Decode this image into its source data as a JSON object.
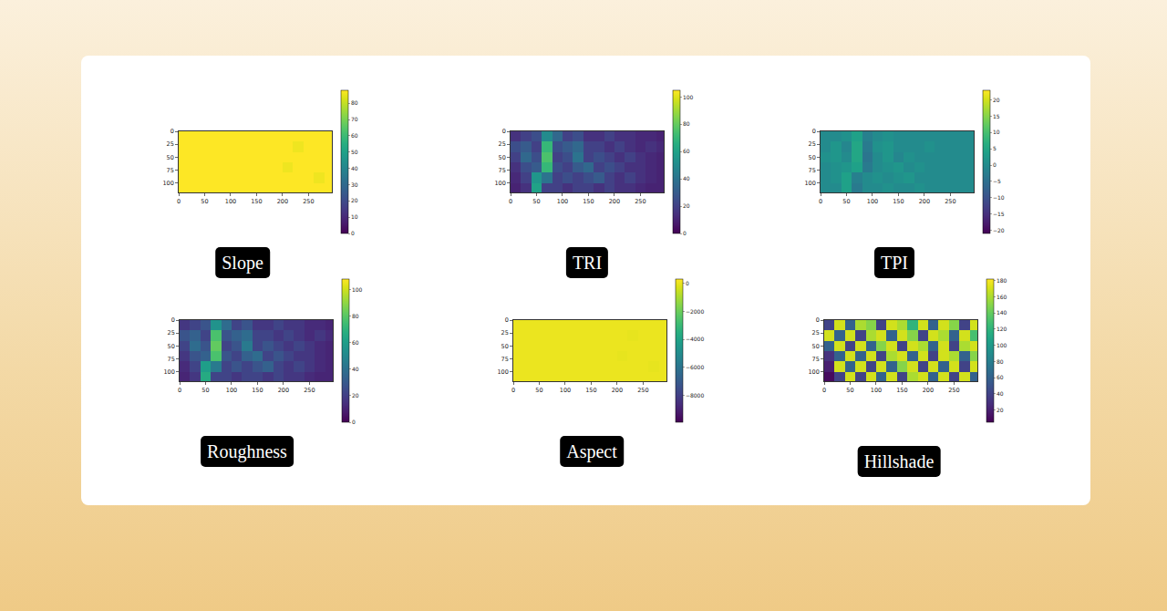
{
  "chart_data": [
    {
      "type": "heatmap",
      "title": "Slope",
      "color": "Viridis",
      "x": [
        10,
        30,
        50,
        70,
        90,
        110,
        130,
        150,
        170,
        190,
        210,
        230,
        250,
        270,
        290
      ],
      "y": [
        10,
        30,
        50,
        70,
        90,
        110
      ],
      "xlim": [
        0,
        295
      ],
      "ylim": [
        118,
        0
      ],
      "xticks": [
        0,
        50,
        100,
        150,
        200,
        250
      ],
      "yticks": [
        0,
        25,
        50,
        75,
        100
      ],
      "values": [
        [
          88,
          88,
          88,
          88,
          88,
          88,
          88,
          88,
          88,
          88,
          88,
          88,
          88,
          88,
          88
        ],
        [
          88,
          88,
          88,
          88,
          88,
          88,
          88,
          88,
          88,
          88,
          88,
          86,
          88,
          88,
          88
        ],
        [
          88,
          88,
          88,
          88,
          88,
          88,
          88,
          88,
          88,
          88,
          88,
          88,
          88,
          88,
          88
        ],
        [
          88,
          88,
          88,
          88,
          88,
          88,
          88,
          88,
          88,
          88,
          86,
          88,
          88,
          88,
          88
        ],
        [
          88,
          88,
          88,
          88,
          88,
          88,
          88,
          88,
          88,
          88,
          88,
          88,
          88,
          86,
          88
        ],
        [
          88,
          88,
          88,
          88,
          88,
          88,
          88,
          88,
          88,
          88,
          88,
          88,
          88,
          88,
          88
        ]
      ],
      "colorbar_range": [
        0,
        88
      ],
      "colorbar_ticks": [
        0,
        10,
        20,
        30,
        40,
        50,
        60,
        70,
        80
      ]
    },
    {
      "type": "heatmap",
      "title": "TRI",
      "color": "Viridis",
      "x": [
        10,
        30,
        50,
        70,
        90,
        110,
        130,
        150,
        170,
        190,
        210,
        230,
        250,
        270,
        290
      ],
      "y": [
        10,
        30,
        50,
        70,
        90,
        110
      ],
      "xlim": [
        0,
        295
      ],
      "ylim": [
        118,
        0
      ],
      "xticks": [
        0,
        50,
        100,
        150,
        200,
        250
      ],
      "yticks": [
        0,
        25,
        50,
        75,
        100
      ],
      "values": [
        [
          15,
          20,
          25,
          50,
          35,
          20,
          25,
          15,
          15,
          20,
          15,
          15,
          12,
          12,
          10
        ],
        [
          25,
          30,
          20,
          70,
          25,
          30,
          35,
          20,
          20,
          15,
          20,
          15,
          12,
          15,
          12
        ],
        [
          20,
          35,
          25,
          75,
          20,
          25,
          40,
          20,
          25,
          20,
          15,
          20,
          15,
          12,
          10
        ],
        [
          15,
          25,
          30,
          70,
          25,
          20,
          30,
          35,
          20,
          25,
          20,
          15,
          15,
          12,
          10
        ],
        [
          12,
          20,
          55,
          40,
          20,
          25,
          20,
          25,
          30,
          20,
          15,
          20,
          15,
          12,
          10
        ],
        [
          10,
          15,
          60,
          20,
          20,
          15,
          20,
          20,
          15,
          20,
          15,
          15,
          12,
          10,
          10
        ]
      ],
      "colorbar_range": [
        0,
        105
      ],
      "colorbar_ticks": [
        0,
        20,
        40,
        60,
        80,
        100
      ]
    },
    {
      "type": "heatmap",
      "title": "TPI",
      "color": "Viridis",
      "x": [
        10,
        30,
        50,
        70,
        90,
        110,
        130,
        150,
        170,
        190,
        210,
        230,
        250,
        270,
        290
      ],
      "y": [
        10,
        30,
        50,
        70,
        90,
        110
      ],
      "xlim": [
        0,
        295
      ],
      "ylim": [
        118,
        0
      ],
      "xticks": [
        0,
        50,
        100,
        150,
        200,
        250
      ],
      "yticks": [
        0,
        25,
        50,
        75,
        100
      ],
      "values": [
        [
          0,
          0,
          1,
          4,
          -2,
          0,
          1,
          0,
          0,
          0,
          0,
          0,
          0,
          0,
          0
        ],
        [
          0,
          2,
          -1,
          5,
          -3,
          1,
          2,
          0,
          0,
          0,
          1,
          0,
          0,
          0,
          0
        ],
        [
          1,
          2,
          0,
          5,
          -4,
          0,
          2,
          -1,
          1,
          0,
          0,
          0,
          0,
          0,
          0
        ],
        [
          0,
          1,
          2,
          4,
          -3,
          0,
          1,
          2,
          0,
          1,
          0,
          0,
          0,
          0,
          0
        ],
        [
          0,
          1,
          4,
          -2,
          0,
          1,
          0,
          1,
          2,
          0,
          0,
          0,
          0,
          0,
          0
        ],
        [
          0,
          0,
          4,
          -3,
          0,
          0,
          1,
          0,
          0,
          1,
          0,
          0,
          0,
          0,
          0
        ]
      ],
      "colorbar_range": [
        -21,
        23
      ],
      "colorbar_ticks": [
        {
          "value": -20,
          "label": "−20"
        },
        {
          "value": -15,
          "label": "−15"
        },
        {
          "value": -10,
          "label": "−10"
        },
        {
          "value": -5,
          "label": "−5"
        },
        0,
        5,
        10,
        15,
        20
      ]
    },
    {
      "type": "heatmap",
      "title": "Roughness",
      "color": "Viridis",
      "x": [
        10,
        30,
        50,
        70,
        90,
        110,
        130,
        150,
        170,
        190,
        210,
        230,
        250,
        270,
        290
      ],
      "y": [
        10,
        30,
        50,
        70,
        90,
        110
      ],
      "xlim": [
        0,
        295
      ],
      "ylim": [
        118,
        0
      ],
      "xticks": [
        0,
        50,
        100,
        150,
        200,
        250
      ],
      "yticks": [
        0,
        25,
        50,
        75,
        100
      ],
      "values": [
        [
          17,
          22,
          28,
          55,
          38,
          22,
          28,
          17,
          17,
          22,
          17,
          17,
          13,
          13,
          11
        ],
        [
          28,
          33,
          22,
          77,
          28,
          33,
          38,
          22,
          22,
          17,
          22,
          17,
          13,
          17,
          13
        ],
        [
          22,
          38,
          28,
          82,
          22,
          28,
          44,
          22,
          28,
          22,
          17,
          22,
          17,
          13,
          11
        ],
        [
          17,
          28,
          33,
          77,
          28,
          22,
          33,
          38,
          22,
          28,
          22,
          17,
          17,
          13,
          11
        ],
        [
          13,
          22,
          60,
          44,
          22,
          28,
          22,
          28,
          33,
          22,
          17,
          22,
          17,
          13,
          11
        ],
        [
          11,
          17,
          66,
          22,
          22,
          17,
          22,
          22,
          17,
          22,
          17,
          17,
          13,
          11,
          11
        ]
      ],
      "colorbar_range": [
        0,
        108
      ],
      "colorbar_ticks": [
        0,
        20,
        40,
        60,
        80,
        100
      ]
    },
    {
      "type": "heatmap",
      "title": "Aspect",
      "color": "Viridis",
      "x": [
        10,
        30,
        50,
        70,
        90,
        110,
        130,
        150,
        170,
        190,
        210,
        230,
        250,
        270,
        290
      ],
      "y": [
        10,
        30,
        50,
        70,
        90,
        110
      ],
      "xlim": [
        0,
        295
      ],
      "ylim": [
        118,
        0
      ],
      "xticks": [
        0,
        50,
        100,
        150,
        200,
        250
      ],
      "yticks": [
        0,
        25,
        50,
        75,
        100
      ],
      "values": [
        [
          0,
          0,
          0,
          0,
          0,
          0,
          0,
          0,
          0,
          0,
          0,
          0,
          0,
          0,
          0
        ],
        [
          0,
          0,
          0,
          0,
          0,
          0,
          0,
          0,
          0,
          0,
          0,
          -50,
          0,
          0,
          0
        ],
        [
          0,
          0,
          0,
          0,
          0,
          0,
          0,
          0,
          0,
          0,
          0,
          0,
          0,
          0,
          0
        ],
        [
          0,
          0,
          0,
          0,
          0,
          0,
          0,
          0,
          0,
          0,
          -50,
          0,
          0,
          0,
          0
        ],
        [
          0,
          0,
          0,
          0,
          0,
          0,
          0,
          0,
          0,
          0,
          0,
          0,
          0,
          -50,
          0
        ],
        [
          0,
          0,
          0,
          0,
          0,
          0,
          0,
          0,
          0,
          0,
          0,
          0,
          0,
          0,
          0
        ]
      ],
      "colorbar_range": [
        -9900,
        300
      ],
      "colorbar_ticks": [
        {
          "value": -8000,
          "label": "−8000"
        },
        {
          "value": -6000,
          "label": "−6000"
        },
        {
          "value": -4000,
          "label": "−4000"
        },
        {
          "value": -2000,
          "label": "−2000"
        },
        0
      ]
    },
    {
      "type": "heatmap",
      "title": "Hillshade",
      "color": "Viridis",
      "x": [
        10,
        30,
        50,
        70,
        90,
        110,
        130,
        150,
        170,
        190,
        210,
        230,
        250,
        270,
        290
      ],
      "y": [
        10,
        30,
        50,
        70,
        90,
        110
      ],
      "xlim": [
        0,
        295
      ],
      "ylim": [
        118,
        0
      ],
      "xticks": [
        0,
        50,
        100,
        150,
        200,
        250
      ],
      "yticks": [
        0,
        25,
        50,
        75,
        100
      ],
      "values": [
        [
          40,
          170,
          60,
          160,
          150,
          40,
          170,
          160,
          120,
          170,
          60,
          170,
          150,
          40,
          170
        ],
        [
          170,
          60,
          170,
          40,
          160,
          170,
          60,
          170,
          150,
          40,
          170,
          160,
          60,
          170,
          130
        ],
        [
          60,
          170,
          40,
          170,
          60,
          150,
          170,
          40,
          170,
          160,
          60,
          170,
          40,
          160,
          170
        ],
        [
          30,
          60,
          170,
          60,
          170,
          40,
          160,
          170,
          60,
          170,
          40,
          170,
          160,
          60,
          150
        ],
        [
          20,
          170,
          60,
          170,
          40,
          170,
          60,
          150,
          170,
          40,
          170,
          60,
          170,
          40,
          170
        ],
        [
          10,
          40,
          170,
          40,
          170,
          60,
          170,
          40,
          160,
          170,
          60,
          170,
          40,
          170,
          60
        ]
      ],
      "colorbar_range": [
        5,
        182
      ],
      "colorbar_ticks": [
        20,
        40,
        60,
        80,
        100,
        120,
        140,
        160,
        180
      ]
    }
  ]
}
